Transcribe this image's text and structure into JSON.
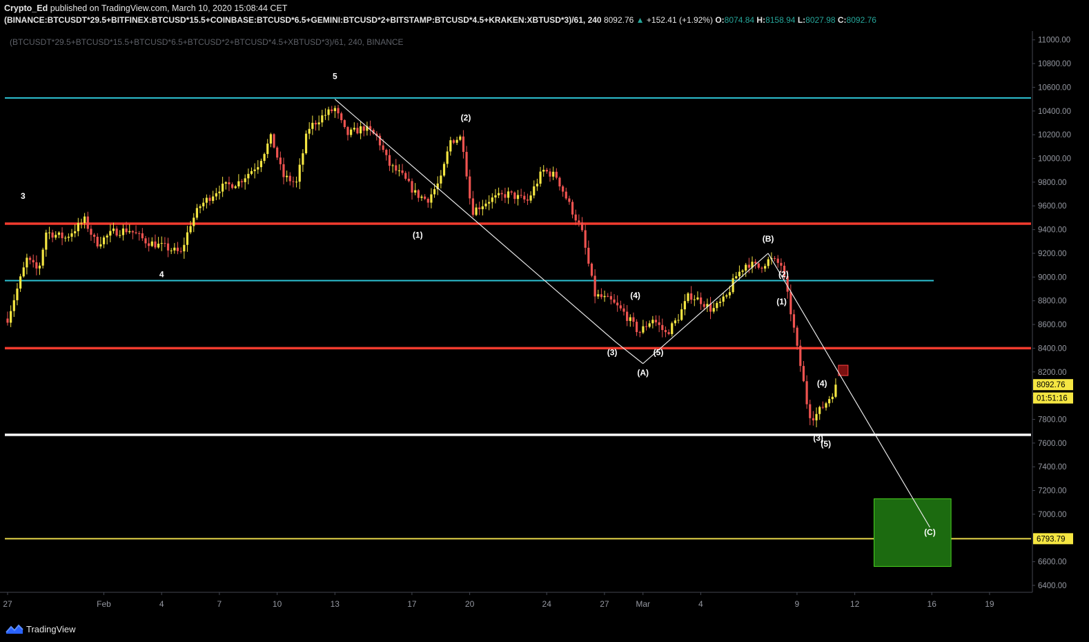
{
  "header": {
    "author": "Crypto_Ed",
    "published": "published on TradingView.com, March 10, 2020 15:08:44 CET",
    "symbol": "(BINANCE:BTCUSDT*29.5+BITFINEX:BTCUSD*15.5+COINBASE:BTCUSD*6.5+GEMINI:BTCUSD*2+BITSTAMP:BTCUSD*4.5+KRAKEN:XBTUSD*3)/61, 240",
    "last": "8092.76",
    "change": "+152.41 (+1.92%)",
    "o_label": "O:",
    "o": "8074.84",
    "h_label": "H:",
    "h": "8158.94",
    "l_label": "L:",
    "l": "8027.98",
    "c_label": "C:",
    "c": "8092.76"
  },
  "inner_title": "(BTCUSDT*29.5+BTCUSD*15.5+BTCUSD*6.5+BTCUSD*2+BTCUSD*4.5+XBTUSD*3)/61, 240, BINANCE",
  "footer": {
    "brand": "TradingView",
    "logo_icon": "tradingview-logo-icon"
  },
  "colors": {
    "background": "#000000",
    "up": "#f5e642",
    "down": "#ef5350",
    "cyan": "#2ec4d6",
    "red_level": "#f23b2e",
    "support": "#ffffff",
    "target": "#e8d84a",
    "target_box": "#1c6b10",
    "target_box_border": "#4ad420",
    "price_label": "#f5e642"
  },
  "chart_data": {
    "type": "candlestick",
    "timeframe": "240",
    "x_tick_labels": [
      {
        "label": "27",
        "day": 27
      },
      {
        "label": "Feb",
        "day": 32
      },
      {
        "label": "4",
        "day": 35
      },
      {
        "label": "7",
        "day": 38
      },
      {
        "label": "10",
        "day": 41
      },
      {
        "label": "13",
        "day": 44
      },
      {
        "label": "17",
        "day": 48
      },
      {
        "label": "20",
        "day": 51
      },
      {
        "label": "24",
        "day": 55
      },
      {
        "label": "27",
        "day": 58
      },
      {
        "label": "Mar",
        "day": 60
      },
      {
        "label": "4",
        "day": 63
      },
      {
        "label": "9",
        "day": 68
      },
      {
        "label": "12",
        "day": 71
      },
      {
        "label": "16",
        "day": 75
      },
      {
        "label": "19",
        "day": 78
      }
    ],
    "y_ticks": [
      6400,
      6600,
      6800,
      7000,
      7200,
      7400,
      7600,
      7800,
      8000,
      8200,
      8400,
      8600,
      8800,
      9000,
      9200,
      9400,
      9600,
      9800,
      10000,
      10200,
      10400,
      10600,
      10800,
      11000
    ],
    "ylim": [
      6330,
      11100
    ],
    "price_path": [
      {
        "day": 27.0,
        "price": 8650
      },
      {
        "day": 27.5,
        "price": 8900
      },
      {
        "day": 28.0,
        "price": 9150
      },
      {
        "day": 28.6,
        "price": 9050
      },
      {
        "day": 29.0,
        "price": 9380
      },
      {
        "day": 30.0,
        "price": 9330
      },
      {
        "day": 31.0,
        "price": 9480
      },
      {
        "day": 31.6,
        "price": 9280
      },
      {
        "day": 32.5,
        "price": 9380
      },
      {
        "day": 33.3,
        "price": 9400
      },
      {
        "day": 34.2,
        "price": 9300
      },
      {
        "day": 35.2,
        "price": 9250
      },
      {
        "day": 36.0,
        "price": 9200
      },
      {
        "day": 36.5,
        "price": 9450
      },
      {
        "day": 37.0,
        "price": 9600
      },
      {
        "day": 38.0,
        "price": 9750
      },
      {
        "day": 39.0,
        "price": 9800
      },
      {
        "day": 40.0,
        "price": 9950
      },
      {
        "day": 40.7,
        "price": 10180
      },
      {
        "day": 41.3,
        "price": 9850
      },
      {
        "day": 42.0,
        "price": 9790
      },
      {
        "day": 42.6,
        "price": 10250
      },
      {
        "day": 43.3,
        "price": 10350
      },
      {
        "day": 44.0,
        "price": 10420
      },
      {
        "day": 44.6,
        "price": 10200
      },
      {
        "day": 45.5,
        "price": 10260
      },
      {
        "day": 46.2,
        "price": 10180
      },
      {
        "day": 46.8,
        "price": 9950
      },
      {
        "day": 47.5,
        "price": 9850
      },
      {
        "day": 48.2,
        "price": 9700
      },
      {
        "day": 48.8,
        "price": 9650
      },
      {
        "day": 49.5,
        "price": 9820
      },
      {
        "day": 50.0,
        "price": 10150
      },
      {
        "day": 50.6,
        "price": 10180
      },
      {
        "day": 51.1,
        "price": 9550
      },
      {
        "day": 52.0,
        "price": 9650
      },
      {
        "day": 53.0,
        "price": 9700
      },
      {
        "day": 54.0,
        "price": 9640
      },
      {
        "day": 54.8,
        "price": 9900
      },
      {
        "day": 55.5,
        "price": 9850
      },
      {
        "day": 56.2,
        "price": 9600
      },
      {
        "day": 56.8,
        "price": 9400
      },
      {
        "day": 57.5,
        "price": 8850
      },
      {
        "day": 58.3,
        "price": 8800
      },
      {
        "day": 59.0,
        "price": 8700
      },
      {
        "day": 59.8,
        "price": 8530
      },
      {
        "day": 60.5,
        "price": 8650
      },
      {
        "day": 61.2,
        "price": 8520
      },
      {
        "day": 61.8,
        "price": 8650
      },
      {
        "day": 62.4,
        "price": 8850
      },
      {
        "day": 63.0,
        "price": 8800
      },
      {
        "day": 63.6,
        "price": 8720
      },
      {
        "day": 64.3,
        "price": 8820
      },
      {
        "day": 64.8,
        "price": 9000
      },
      {
        "day": 65.4,
        "price": 9120
      },
      {
        "day": 66.0,
        "price": 9080
      },
      {
        "day": 66.6,
        "price": 9150
      },
      {
        "day": 67.2,
        "price": 9100
      },
      {
        "day": 67.5,
        "price": 8850
      },
      {
        "day": 67.8,
        "price": 8600
      },
      {
        "day": 68.0,
        "price": 8400
      },
      {
        "day": 68.3,
        "price": 8150
      },
      {
        "day": 68.6,
        "price": 7850
      },
      {
        "day": 68.9,
        "price": 7820
      },
      {
        "day": 69.2,
        "price": 7880
      },
      {
        "day": 69.6,
        "price": 7960
      },
      {
        "day": 70.1,
        "price": 8092.76
      }
    ],
    "horizontal_levels": [
      {
        "price": 10510,
        "color": "cyan",
        "x_end": "full"
      },
      {
        "price": 9450,
        "color": "red",
        "x_end": "full"
      },
      {
        "price": 8970,
        "color": "cyan",
        "x_end": "partial"
      },
      {
        "price": 8400,
        "color": "red",
        "x_end": "full"
      },
      {
        "price": 7670,
        "color": "white",
        "x_end": "full"
      },
      {
        "price": 6793.79,
        "color": "yellow",
        "x_end": "full"
      }
    ],
    "trend_lines": [
      {
        "from": {
          "day": 44.0,
          "price": 10500
        },
        "to": {
          "day": 58.6,
          "price": 8450
        }
      },
      {
        "from": {
          "day": 58.6,
          "price": 8450
        },
        "to": {
          "day": 60.0,
          "price": 8270
        }
      },
      {
        "from": {
          "day": 60.0,
          "price": 8270
        },
        "to": {
          "day": 66.5,
          "price": 9200
        }
      },
      {
        "from": {
          "day": 66.5,
          "price": 9200
        },
        "to": {
          "day": 74.9,
          "price": 6890
        }
      }
    ],
    "wave_labels": [
      {
        "text": "3",
        "day": 27.8,
        "price": 9660
      },
      {
        "text": "4",
        "day": 35.0,
        "price": 9000
      },
      {
        "text": "5",
        "day": 44.0,
        "price": 10670
      },
      {
        "text": "(1)",
        "day": 48.3,
        "price": 9330
      },
      {
        "text": "(2)",
        "day": 50.8,
        "price": 10320
      },
      {
        "text": "(3)",
        "day": 58.4,
        "price": 8340
      },
      {
        "text": "(4)",
        "day": 59.6,
        "price": 8820
      },
      {
        "text": "(A)",
        "day": 60.0,
        "price": 8170
      },
      {
        "text": "(5)",
        "day": 60.8,
        "price": 8340
      },
      {
        "text": "(B)",
        "day": 66.5,
        "price": 9300
      },
      {
        "text": "(2)",
        "day": 67.3,
        "price": 9000
      },
      {
        "text": "(1)",
        "day": 67.2,
        "price": 8770
      },
      {
        "text": "(4)",
        "day": 69.3,
        "price": 8080
      },
      {
        "text": "(3)",
        "day": 69.1,
        "price": 7620
      },
      {
        "text": "(5)",
        "day": 69.5,
        "price": 7570
      },
      {
        "text": "(C)",
        "day": 74.9,
        "price": 6825
      }
    ],
    "target_box": {
      "day_from": 72.0,
      "day_to": 76.0,
      "price_from": 6560,
      "price_to": 7130
    },
    "marker_box": {
      "day": 70.4,
      "price": 8210
    },
    "price_labels": [
      {
        "text": "8092.76",
        "price": 8092.76
      },
      {
        "text": "01:51:16",
        "price": 7980
      },
      {
        "text": "6793.79",
        "price": 6793.79
      }
    ],
    "current_price": 8092.76,
    "target_price": 6793.79
  }
}
